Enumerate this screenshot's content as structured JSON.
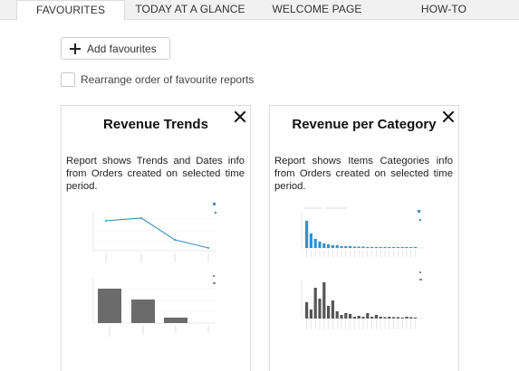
{
  "tabs": [
    {
      "label": "FAVOURITES",
      "active": true
    },
    {
      "label": "TODAY AT A GLANCE",
      "active": false
    },
    {
      "label": "WELCOME PAGE",
      "active": false
    },
    {
      "label": "HOW-TO",
      "active": false
    }
  ],
  "toolbar": {
    "add_label": "Add favourites",
    "rearrange_label": "Rearrange order of favourite reports",
    "rearrange_checked": false
  },
  "cards": [
    {
      "title": "Revenue Trends",
      "description": "Report shows Trends and Dates info from Orders created on selected time period."
    },
    {
      "title": "Revenue per Category",
      "description": "Report shows Items Categories info from Orders created on selected time period."
    }
  ],
  "colors": {
    "accent_blue": "#3a8fc3",
    "bar_gray": "#6b6b6b",
    "tab_bar_bg": "#f1f1f1"
  }
}
